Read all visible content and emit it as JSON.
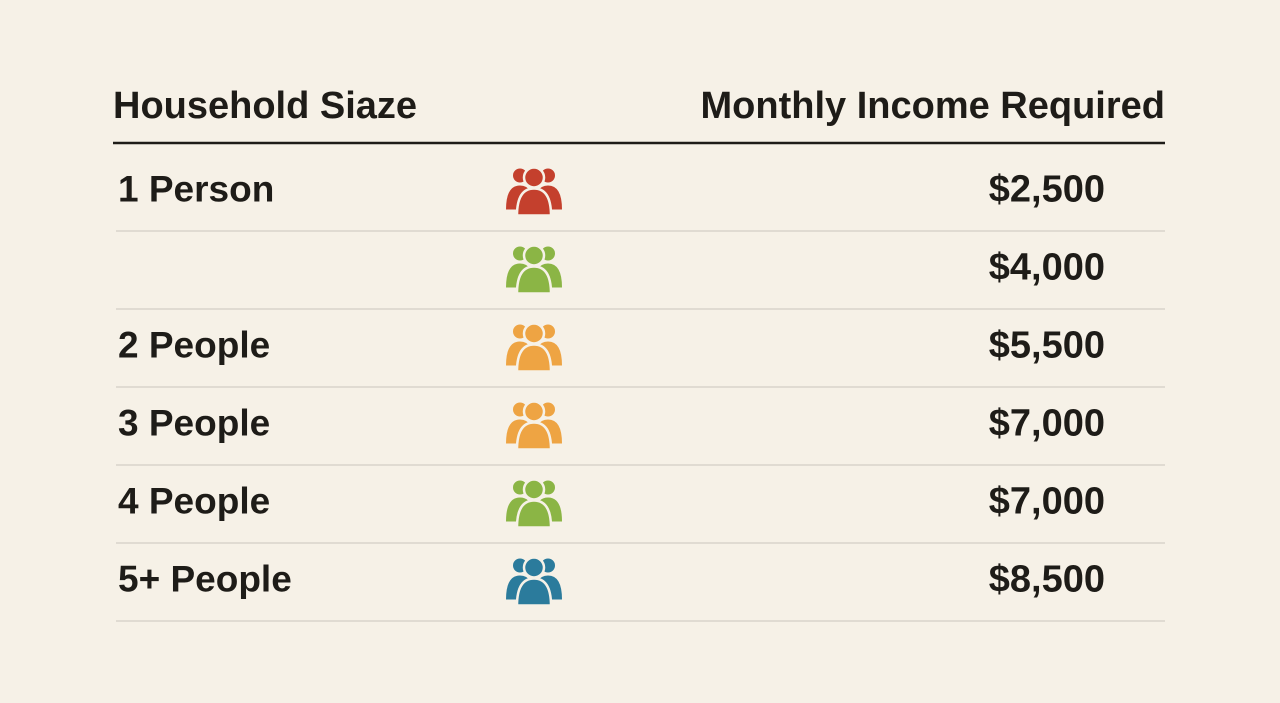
{
  "table": {
    "header": [
      "Household Siaze",
      "Monthly Income Required"
    ],
    "rows": [
      {
        "label": "1 Person",
        "color": "#c4402d",
        "income": "$2,500"
      },
      {
        "label": null,
        "color": "#8bb545",
        "income": "$4,000"
      },
      {
        "label": "2 People",
        "color": "#eea443",
        "income": "$5,500"
      },
      {
        "label": "3 People",
        "color": "#eea443",
        "income": "$7,000"
      },
      {
        "label": "4 People",
        "color": "#8bb545",
        "income": "$7,000"
      },
      {
        "label": "5+ People",
        "color": "#2b7b9c",
        "income": "$8,500"
      }
    ]
  }
}
